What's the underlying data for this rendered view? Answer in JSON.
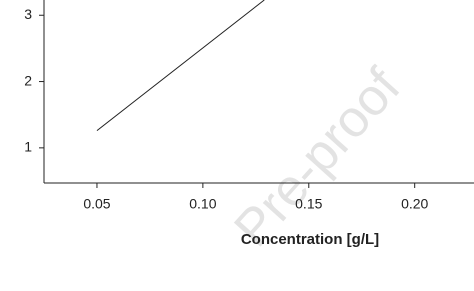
{
  "chart_data": {
    "type": "line",
    "x_label": "Concentration [g/L]",
    "watermark": "Pre-proof",
    "x": [
      0.05,
      0.129
    ],
    "series": [
      {
        "values": [
          1.26,
          3.23
        ],
        "color": "#222222"
      }
    ],
    "xlim": [
      0.025,
      0.228
    ],
    "ylim": [
      0.47,
      3.23
    ],
    "xticks": [
      {
        "value": 0.05,
        "label": "0.05"
      },
      {
        "value": 0.1,
        "label": "0.10"
      },
      {
        "value": 0.15,
        "label": "0.15"
      },
      {
        "value": 0.2,
        "label": "0.20"
      }
    ],
    "yticks": [
      1,
      2,
      3
    ]
  }
}
